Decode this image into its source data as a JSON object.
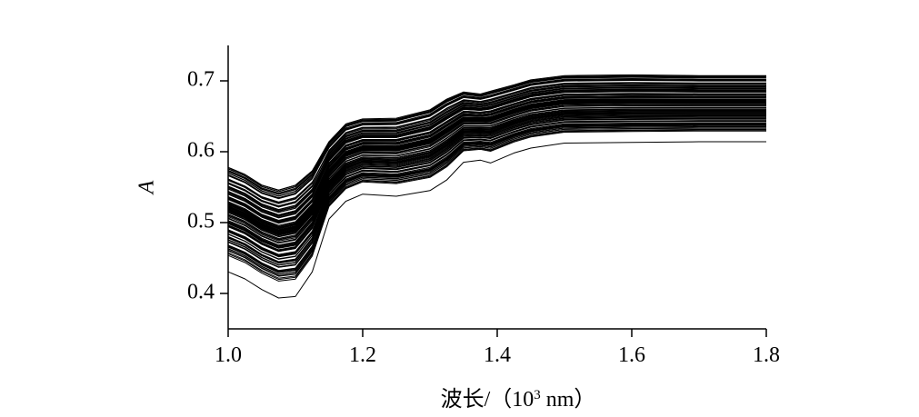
{
  "chart_data": {
    "type": "line",
    "title": "",
    "xlabel": "波长/（10³ nm）",
    "xlabel_parts": {
      "prefix": "波长/（10",
      "sup": "3",
      "suffix": " nm）"
    },
    "ylabel": "A",
    "xlim": [
      1.0,
      1.8
    ],
    "ylim": [
      0.35,
      0.75
    ],
    "xticks": [
      "1.0",
      "1.2",
      "1.4",
      "1.6",
      "1.8"
    ],
    "yticks": [
      "0.4",
      "0.5",
      "0.6",
      "0.7"
    ],
    "grid": false,
    "legend": "none",
    "line_color": "#000000",
    "x": [
      1.0,
      1.025,
      1.05,
      1.075,
      1.1,
      1.125,
      1.15,
      1.175,
      1.2,
      1.25,
      1.3,
      1.325,
      1.35,
      1.375,
      1.39,
      1.425,
      1.45,
      1.5,
      1.6,
      1.7,
      1.8
    ],
    "series_summary": {
      "count": 120,
      "upper": [
        0.58,
        0.57,
        0.555,
        0.548,
        0.555,
        0.575,
        0.615,
        0.64,
        0.647,
        0.648,
        0.66,
        0.675,
        0.685,
        0.682,
        0.686,
        0.695,
        0.702,
        0.708,
        0.709,
        0.708,
        0.708
      ],
      "lower": [
        0.43,
        0.42,
        0.405,
        0.393,
        0.395,
        0.43,
        0.505,
        0.53,
        0.54,
        0.537,
        0.545,
        0.56,
        0.585,
        0.588,
        0.584,
        0.598,
        0.605,
        0.612,
        0.613,
        0.614,
        0.614
      ]
    }
  }
}
